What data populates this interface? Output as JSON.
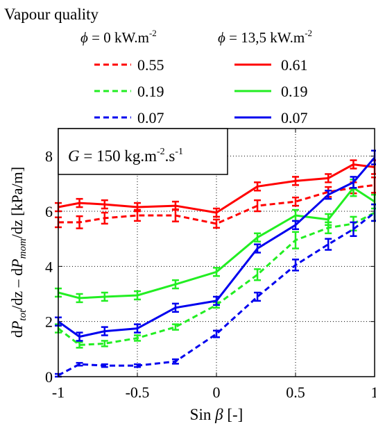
{
  "chart_data": {
    "type": "line",
    "title": "",
    "xlabel": {
      "pre": "Sin ",
      "var": "β",
      "post": " [-]"
    },
    "ylabel": {
      "p1": "d",
      "v1": "P",
      "s1": "tot",
      "p2": "/dz – d",
      "v2": "P",
      "s2": "mom",
      "p3": "/dz [kPa/m]"
    },
    "xlim": [
      -1,
      1
    ],
    "ylim": [
      0,
      9
    ],
    "xticks": [
      -1,
      -0.5,
      0,
      0.5,
      1
    ],
    "xtick_labels": [
      "-1",
      "-0.5",
      "0",
      "0.5",
      "1"
    ],
    "yticks": [
      0,
      2,
      4,
      6,
      8
    ],
    "ytick_labels": [
      "0",
      "2",
      "4",
      "6",
      "8"
    ],
    "grid": true,
    "annotation": {
      "pre": "G",
      "mid": " = 150 kg.m",
      "sup": "-2",
      "mid2": ".s",
      "sup2": "-1"
    },
    "legend": {
      "title": "Vapour quality",
      "col1": {
        "sym": "ϕ",
        "text": " = 0 kW.m",
        "sup": "-2"
      },
      "col2": {
        "sym": "ϕ",
        "text": " = 13,5 kW.m",
        "sup": "-2"
      },
      "placement": "top"
    },
    "x": [
      -1,
      -0.866,
      -0.707,
      -0.5,
      -0.259,
      0,
      0.259,
      0.5,
      0.707,
      0.866,
      1
    ],
    "series": [
      {
        "name": "0.55",
        "heat_flux": "0",
        "color": "#ff0000",
        "dash": true,
        "values": [
          5.6,
          5.6,
          5.75,
          5.85,
          5.85,
          5.55,
          6.2,
          6.35,
          6.7,
          6.85,
          6.95
        ],
        "errors": [
          0.18,
          0.22,
          0.2,
          0.2,
          0.22,
          0.15,
          0.2,
          0.15,
          0.18,
          0.2,
          0.28
        ]
      },
      {
        "name": "0.61",
        "heat_flux": "13,5",
        "color": "#ff0000",
        "dash": false,
        "values": [
          6.15,
          6.3,
          6.25,
          6.15,
          6.2,
          5.95,
          6.9,
          7.1,
          7.2,
          7.7,
          7.6
        ],
        "errors": [
          0.15,
          0.15,
          0.15,
          0.15,
          0.15,
          0.15,
          0.15,
          0.15,
          0.15,
          0.15,
          0.25
        ]
      },
      {
        "name": "0.19",
        "heat_flux": "0",
        "color": "#22ee22",
        "dash": true,
        "values": [
          1.75,
          1.15,
          1.2,
          1.4,
          1.8,
          2.6,
          3.7,
          4.95,
          5.4,
          5.55,
          5.95
        ],
        "errors": [
          0.15,
          0.1,
          0.1,
          0.1,
          0.1,
          0.1,
          0.2,
          0.3,
          0.2,
          0.25,
          0.3
        ]
      },
      {
        "name": "0.19",
        "heat_flux": "13,5",
        "color": "#22ee22",
        "dash": false,
        "values": [
          3.05,
          2.85,
          2.9,
          2.95,
          3.35,
          3.8,
          5.05,
          5.85,
          5.7,
          6.85,
          6.35
        ],
        "errors": [
          0.15,
          0.15,
          0.15,
          0.15,
          0.15,
          0.15,
          0.15,
          0.2,
          0.2,
          0.3,
          0.25
        ]
      },
      {
        "name": "0.07",
        "heat_flux": "0",
        "color": "#0000ee",
        "dash": true,
        "values": [
          0.05,
          0.45,
          0.4,
          0.4,
          0.55,
          1.55,
          2.9,
          4.05,
          4.8,
          5.35,
          5.95
        ],
        "errors": [
          0.05,
          0.05,
          0.05,
          0.05,
          0.08,
          0.12,
          0.15,
          0.2,
          0.2,
          0.25,
          0.3
        ]
      },
      {
        "name": "0.07",
        "heat_flux": "13,5",
        "color": "#0000ee",
        "dash": false,
        "values": [
          2.0,
          1.45,
          1.65,
          1.75,
          2.5,
          2.75,
          4.65,
          5.5,
          6.6,
          7.05,
          7.95
        ],
        "errors": [
          0.15,
          0.15,
          0.15,
          0.15,
          0.15,
          0.15,
          0.15,
          0.15,
          0.15,
          0.2,
          0.25
        ]
      }
    ]
  }
}
